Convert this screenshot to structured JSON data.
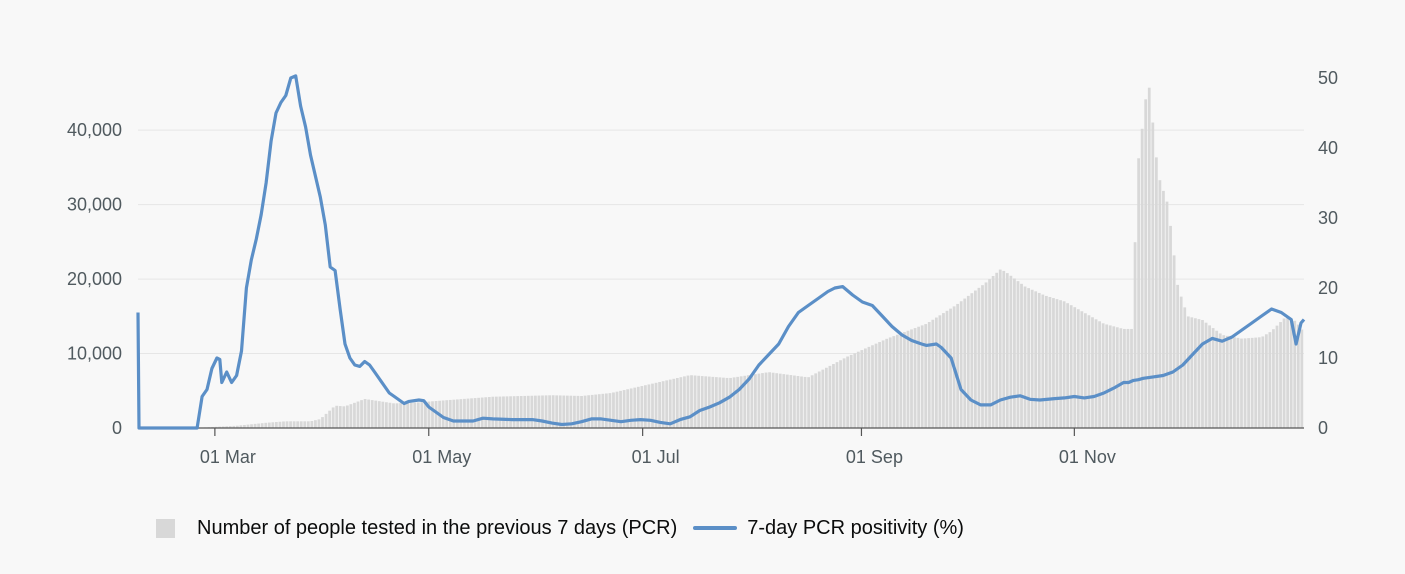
{
  "chart_data": {
    "type": "bar+line",
    "x_ticks": [
      "01 Mar",
      "01 May",
      "01 Jul",
      "01 Sep",
      "01 Nov"
    ],
    "y_left": {
      "ylim": [
        0,
        47000
      ],
      "ticks": [
        0,
        10000,
        20000,
        30000,
        40000
      ],
      "tick_labels": [
        "0",
        "10,000",
        "20,000",
        "30,000",
        "40,000"
      ]
    },
    "y_right": {
      "ylim": [
        0,
        50
      ],
      "ticks": [
        0,
        10,
        20,
        30,
        40,
        50
      ],
      "tick_labels": [
        "0",
        "10",
        "20",
        "30",
        "40",
        "50"
      ]
    },
    "series": [
      {
        "name": "Number of people tested in the previous 7 days (PCR)",
        "kind": "bar",
        "axis": "left",
        "color": "#d8d8d8",
        "points": [
          [
            0,
            0
          ],
          [
            60,
            0
          ],
          [
            70,
            100
          ],
          [
            100,
            300
          ],
          [
            130,
            700
          ],
          [
            150,
            900
          ],
          [
            175,
            900
          ],
          [
            185,
            1200
          ],
          [
            200,
            3000
          ],
          [
            210,
            2900
          ],
          [
            230,
            3900
          ],
          [
            260,
            3300
          ],
          [
            280,
            3400
          ],
          [
            320,
            3800
          ],
          [
            360,
            4200
          ],
          [
            420,
            4400
          ],
          [
            450,
            4300
          ],
          [
            480,
            4700
          ],
          [
            520,
            5900
          ],
          [
            560,
            7100
          ],
          [
            600,
            6700
          ],
          [
            640,
            7500
          ],
          [
            680,
            6800
          ],
          [
            720,
            9600
          ],
          [
            760,
            12000
          ],
          [
            800,
            14000
          ],
          [
            830,
            16500
          ],
          [
            860,
            19500
          ],
          [
            875,
            21300
          ],
          [
            880,
            21000
          ],
          [
            900,
            19000
          ],
          [
            920,
            17800
          ],
          [
            940,
            17000
          ],
          [
            960,
            15500
          ],
          [
            980,
            14000
          ],
          [
            1000,
            13300
          ],
          [
            1010,
            13300
          ],
          [
            1011,
            23000
          ],
          [
            1015,
            36000
          ],
          [
            1025,
            47000
          ],
          [
            1035,
            34000
          ],
          [
            1045,
            30000
          ],
          [
            1055,
            19000
          ],
          [
            1065,
            15000
          ],
          [
            1080,
            14500
          ],
          [
            1100,
            12500
          ],
          [
            1120,
            12000
          ],
          [
            1140,
            12200
          ],
          [
            1150,
            13000
          ],
          [
            1165,
            15000
          ],
          [
            1175,
            14300
          ],
          [
            1182,
            13000
          ],
          [
            1183,
            12800
          ]
        ]
      },
      {
        "name": "7-day PCR positivity (%)",
        "kind": "line",
        "axis": "right",
        "color": "#5b8fc7",
        "points": [
          [
            0,
            16.5
          ],
          [
            1,
            0
          ],
          [
            2,
            0
          ],
          [
            60,
            0
          ],
          [
            65,
            4.5
          ],
          [
            70,
            5.5
          ],
          [
            75,
            8.5
          ],
          [
            80,
            10
          ],
          [
            83,
            9.8
          ],
          [
            85,
            6.5
          ],
          [
            90,
            8
          ],
          [
            95,
            6.5
          ],
          [
            100,
            7.5
          ],
          [
            105,
            11
          ],
          [
            110,
            20
          ],
          [
            115,
            24
          ],
          [
            120,
            27
          ],
          [
            125,
            30.5
          ],
          [
            130,
            35
          ],
          [
            135,
            41
          ],
          [
            140,
            45
          ],
          [
            145,
            46.5
          ],
          [
            150,
            47.5
          ],
          [
            155,
            50
          ],
          [
            160,
            50.3
          ],
          [
            165,
            46
          ],
          [
            170,
            43
          ],
          [
            175,
            39
          ],
          [
            180,
            36
          ],
          [
            185,
            33
          ],
          [
            190,
            29
          ],
          [
            195,
            23
          ],
          [
            200,
            22.5
          ],
          [
            205,
            17
          ],
          [
            210,
            12
          ],
          [
            215,
            10
          ],
          [
            220,
            9
          ],
          [
            225,
            8.8
          ],
          [
            230,
            9.5
          ],
          [
            235,
            9
          ],
          [
            240,
            8
          ],
          [
            245,
            7
          ],
          [
            250,
            6
          ],
          [
            255,
            5
          ],
          [
            260,
            4.5
          ],
          [
            265,
            4
          ],
          [
            270,
            3.5
          ],
          [
            275,
            3.8
          ],
          [
            285,
            4
          ],
          [
            290,
            3.9
          ],
          [
            295,
            3
          ],
          [
            300,
            2.5
          ],
          [
            310,
            1.5
          ],
          [
            320,
            1
          ],
          [
            340,
            1
          ],
          [
            350,
            1.4
          ],
          [
            360,
            1.3
          ],
          [
            380,
            1.2
          ],
          [
            400,
            1.2
          ],
          [
            410,
            1
          ],
          [
            420,
            0.7
          ],
          [
            430,
            0.5
          ],
          [
            440,
            0.6
          ],
          [
            450,
            0.9
          ],
          [
            460,
            1.3
          ],
          [
            470,
            1.3
          ],
          [
            480,
            1.1
          ],
          [
            490,
            0.9
          ],
          [
            500,
            1.1
          ],
          [
            510,
            1.2
          ],
          [
            520,
            1.1
          ],
          [
            530,
            0.8
          ],
          [
            540,
            0.6
          ],
          [
            550,
            1.2
          ],
          [
            560,
            1.6
          ],
          [
            570,
            2.5
          ],
          [
            580,
            3
          ],
          [
            590,
            3.6
          ],
          [
            600,
            4.4
          ],
          [
            610,
            5.5
          ],
          [
            620,
            7
          ],
          [
            630,
            9
          ],
          [
            640,
            10.5
          ],
          [
            650,
            12
          ],
          [
            660,
            14.5
          ],
          [
            670,
            16.5
          ],
          [
            680,
            17.5
          ],
          [
            690,
            18.5
          ],
          [
            700,
            19.5
          ],
          [
            707,
            20
          ],
          [
            715,
            20.2
          ],
          [
            725,
            19
          ],
          [
            735,
            18
          ],
          [
            745,
            17.5
          ],
          [
            755,
            16
          ],
          [
            765,
            14.5
          ],
          [
            775,
            13.3
          ],
          [
            785,
            12.5
          ],
          [
            795,
            12
          ],
          [
            800,
            11.8
          ],
          [
            810,
            12
          ],
          [
            815,
            11.5
          ],
          [
            825,
            10
          ],
          [
            835,
            5.5
          ],
          [
            845,
            4
          ],
          [
            855,
            3.3
          ],
          [
            865,
            3.3
          ],
          [
            875,
            4
          ],
          [
            885,
            4.4
          ],
          [
            895,
            4.6
          ],
          [
            905,
            4.1
          ],
          [
            915,
            4
          ],
          [
            930,
            4.2
          ],
          [
            940,
            4.3
          ],
          [
            950,
            4.5
          ],
          [
            960,
            4.3
          ],
          [
            970,
            4.5
          ],
          [
            980,
            5
          ],
          [
            990,
            5.7
          ],
          [
            1000,
            6.5
          ],
          [
            1005,
            6.5
          ],
          [
            1010,
            6.8
          ],
          [
            1015,
            6.9
          ],
          [
            1020,
            7.1
          ],
          [
            1030,
            7.3
          ],
          [
            1040,
            7.5
          ],
          [
            1050,
            8
          ],
          [
            1060,
            9
          ],
          [
            1070,
            10.5
          ],
          [
            1080,
            12
          ],
          [
            1090,
            12.8
          ],
          [
            1100,
            12.4
          ],
          [
            1110,
            13
          ],
          [
            1120,
            14
          ],
          [
            1130,
            15
          ],
          [
            1140,
            16
          ],
          [
            1150,
            17
          ],
          [
            1160,
            16.5
          ],
          [
            1170,
            15.5
          ],
          [
            1175,
            12
          ],
          [
            1180,
            15
          ],
          [
            1183,
            15.5
          ]
        ]
      }
    ],
    "legend": {
      "bar_label": "Number of people tested in the previous 7 days (PCR)",
      "line_label": "7-day PCR positivity (%)",
      "position": "bottom"
    }
  },
  "colors": {
    "bar": "#d8d8d8",
    "line": "#5b8fc7",
    "grid": "#e6e6e6",
    "axis": "#555555",
    "text": "#505a5f"
  }
}
